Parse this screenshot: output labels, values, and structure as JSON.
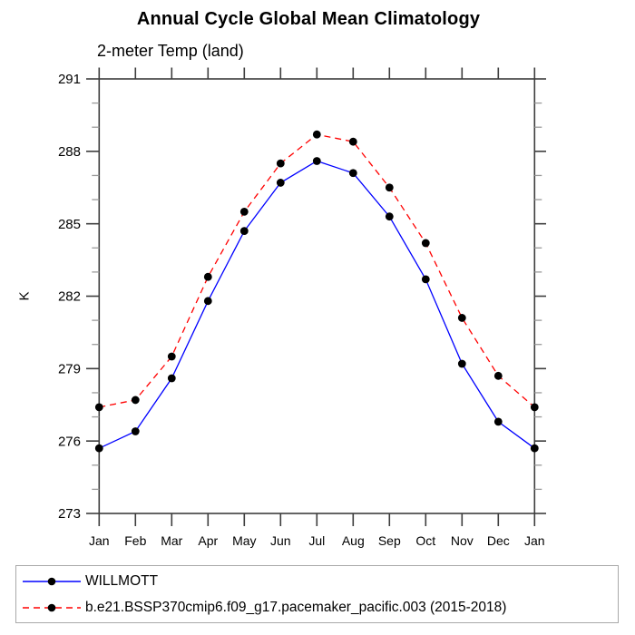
{
  "header": {
    "title": "Annual Cycle Global Mean Climatology",
    "subtitle": "2-meter Temp (land)"
  },
  "chart_data": {
    "type": "line",
    "title": "Annual Cycle Global Mean Climatology",
    "subtitle": "2-meter Temp (land)",
    "xlabel": "",
    "ylabel": "K",
    "ylim": [
      273,
      291
    ],
    "yticks": [
      273,
      276,
      279,
      282,
      285,
      288,
      291
    ],
    "yminor_step": 1,
    "grid": false,
    "legend_position": "bottom-left-box",
    "categories": [
      "Jan",
      "Feb",
      "Mar",
      "Apr",
      "May",
      "Jun",
      "Jul",
      "Aug",
      "Sep",
      "Oct",
      "Nov",
      "Dec",
      "Jan"
    ],
    "series": [
      {
        "name": "WILLMOTT",
        "color": "#0000ff",
        "line_style": "solid",
        "marker": "black-dot",
        "values": [
          275.7,
          276.4,
          278.6,
          281.8,
          284.7,
          286.7,
          287.6,
          287.1,
          285.3,
          282.7,
          279.2,
          276.8,
          275.7
        ]
      },
      {
        "name": "b.e21.BSSP370cmip6.f09_g17.pacemaker_pacific.003 (2015-2018)",
        "color": "#ff0000",
        "line_style": "dashed",
        "marker": "black-dot",
        "values": [
          277.4,
          277.7,
          279.5,
          282.8,
          285.5,
          287.5,
          288.7,
          288.4,
          286.5,
          284.2,
          281.1,
          278.7,
          277.4
        ]
      }
    ]
  },
  "colors": {
    "axis": "#3d3d3d",
    "minor_tick": "#9a9a9a",
    "marker": "#000000",
    "legend_border": "#a9a9a9",
    "background": "#ffffff"
  }
}
